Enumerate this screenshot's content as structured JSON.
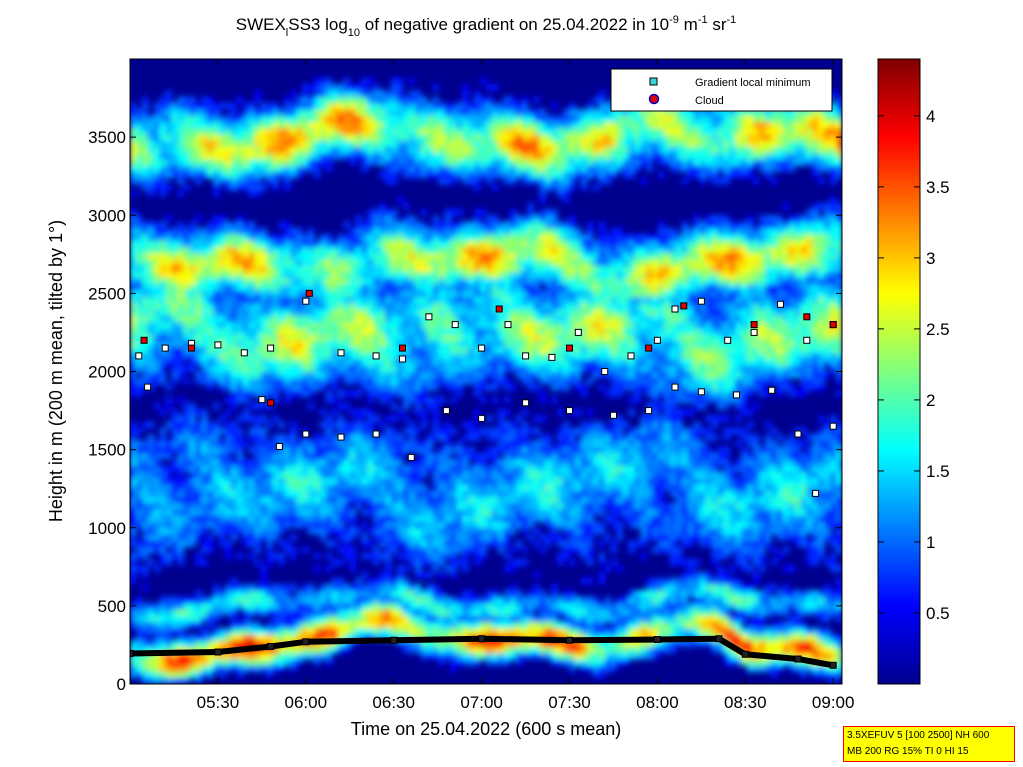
{
  "chart_data": {
    "type": "heatmap",
    "title": {
      "prefix": "SWEX",
      "sub1": "l",
      "mid1": "SS3 log",
      "sub2": "10",
      "mid2": " of negative gradient on 25.04.2022 in 10",
      "sup1": "-9",
      "mid3": " m",
      "sup2": "-1",
      "mid4": " sr",
      "sup3": "-1"
    },
    "xlabel": "Time on 25.04.2022 (600 s mean)",
    "ylabel": "Height in m (200 m mean, tilted by 1°)",
    "x_ticks": [
      "05:30",
      "06:00",
      "06:30",
      "07:00",
      "07:30",
      "08:00",
      "08:30",
      "09:00"
    ],
    "x_tick_hours": [
      5.5,
      6.0,
      6.5,
      7.0,
      7.5,
      8.0,
      8.5,
      9.0
    ],
    "xlim_hours": [
      5.0,
      9.05
    ],
    "y_ticks": [
      "0",
      "500",
      "1000",
      "1500",
      "2000",
      "2500",
      "3000",
      "3500"
    ],
    "y_tick_values": [
      0,
      500,
      1000,
      1500,
      2000,
      2500,
      3000,
      3500
    ],
    "ylim": [
      0,
      4000
    ],
    "colorbar": {
      "ticks": [
        "0.5",
        "1",
        "1.5",
        "2",
        "2.5",
        "3",
        "3.5",
        "4"
      ],
      "tick_values": [
        0.5,
        1,
        1.5,
        2,
        2.5,
        3,
        3.5,
        4
      ],
      "range": [
        0,
        4.4
      ],
      "colormap": "jet"
    },
    "legend": {
      "position": "top-right",
      "entries": [
        {
          "label": "Gradient local minimum",
          "marker": "square",
          "color": "#3ad6d6"
        },
        {
          "label": "Cloud",
          "marker": "circle",
          "color": "#e00000",
          "edge": "#0000cc"
        }
      ]
    },
    "bands": [
      {
        "name": "surface",
        "center": 250,
        "width": 120,
        "value": 3.0
      },
      {
        "name": "low",
        "center": 520,
        "width": 100,
        "value": 1.5
      },
      {
        "name": "mid",
        "center": 1250,
        "width": 450,
        "value": 1.3
      },
      {
        "name": "upper",
        "center": 2250,
        "width": 350,
        "value": 2.0
      },
      {
        "name": "high",
        "center": 2700,
        "width": 220,
        "value": 2.4
      },
      {
        "name": "top",
        "center": 3500,
        "width": 220,
        "value": 2.5
      }
    ],
    "boundary_layer_minima": [
      {
        "t": 5.0,
        "h": 195
      },
      {
        "t": 5.5,
        "h": 205
      },
      {
        "t": 5.8,
        "h": 240
      },
      {
        "t": 6.0,
        "h": 270
      },
      {
        "t": 6.5,
        "h": 280
      },
      {
        "t": 7.0,
        "h": 290
      },
      {
        "t": 7.5,
        "h": 280
      },
      {
        "t": 8.0,
        "h": 285
      },
      {
        "t": 8.35,
        "h": 290
      },
      {
        "t": 8.5,
        "h": 190
      },
      {
        "t": 8.8,
        "h": 160
      },
      {
        "t": 9.0,
        "h": 120
      }
    ],
    "gradient_minima_series": [
      {
        "name": "upper",
        "points": [
          {
            "t": 5.05,
            "h": 2100
          },
          {
            "t": 5.2,
            "h": 2150
          },
          {
            "t": 5.35,
            "h": 2180
          },
          {
            "t": 5.5,
            "h": 2170
          },
          {
            "t": 5.65,
            "h": 2120
          },
          {
            "t": 5.8,
            "h": 2150
          },
          {
            "t": 6.0,
            "h": 2450
          },
          {
            "t": 6.2,
            "h": 2120
          },
          {
            "t": 6.4,
            "h": 2100
          },
          {
            "t": 6.55,
            "h": 2080
          },
          {
            "t": 6.7,
            "h": 2350
          },
          {
            "t": 6.85,
            "h": 2300
          },
          {
            "t": 7.0,
            "h": 2150
          },
          {
            "t": 7.15,
            "h": 2300
          },
          {
            "t": 7.25,
            "h": 2100
          },
          {
            "t": 7.4,
            "h": 2090
          },
          {
            "t": 7.55,
            "h": 2250
          },
          {
            "t": 7.7,
            "h": 2000
          },
          {
            "t": 7.85,
            "h": 2100
          },
          {
            "t": 8.0,
            "h": 2200
          },
          {
            "t": 8.1,
            "h": 2400
          },
          {
            "t": 8.25,
            "h": 2450
          },
          {
            "t": 8.4,
            "h": 2200
          },
          {
            "t": 8.55,
            "h": 2250
          },
          {
            "t": 8.7,
            "h": 2430
          },
          {
            "t": 8.85,
            "h": 2200
          },
          {
            "t": 9.0,
            "h": 2300
          }
        ]
      },
      {
        "name": "lower",
        "points": [
          {
            "t": 5.1,
            "h": 1900
          },
          {
            "t": 5.75,
            "h": 1820
          },
          {
            "t": 5.85,
            "h": 1520
          },
          {
            "t": 6.0,
            "h": 1600
          },
          {
            "t": 6.2,
            "h": 1580
          },
          {
            "t": 6.4,
            "h": 1600
          },
          {
            "t": 6.6,
            "h": 1450
          },
          {
            "t": 6.8,
            "h": 1750
          },
          {
            "t": 7.0,
            "h": 1700
          },
          {
            "t": 7.25,
            "h": 1800
          },
          {
            "t": 7.5,
            "h": 1750
          },
          {
            "t": 7.75,
            "h": 1720
          },
          {
            "t": 7.95,
            "h": 1750
          },
          {
            "t": 8.1,
            "h": 1900
          },
          {
            "t": 8.25,
            "h": 1870
          },
          {
            "t": 8.45,
            "h": 1850
          },
          {
            "t": 8.65,
            "h": 1880
          },
          {
            "t": 8.8,
            "h": 1600
          },
          {
            "t": 8.9,
            "h": 1220
          },
          {
            "t": 9.0,
            "h": 1650
          }
        ]
      }
    ],
    "cloud_points": [
      {
        "t": 5.08,
        "h": 2200
      },
      {
        "t": 5.35,
        "h": 2150
      },
      {
        "t": 5.8,
        "h": 1800
      },
      {
        "t": 6.02,
        "h": 2500
      },
      {
        "t": 6.55,
        "h": 2150
      },
      {
        "t": 7.1,
        "h": 2400
      },
      {
        "t": 7.5,
        "h": 2150
      },
      {
        "t": 7.95,
        "h": 2150
      },
      {
        "t": 8.15,
        "h": 2420
      },
      {
        "t": 8.55,
        "h": 2300
      },
      {
        "t": 8.85,
        "h": 2350
      },
      {
        "t": 9.0,
        "h": 2300
      }
    ]
  },
  "infobox": {
    "line1": "3.5XEFUV 5 [100 2500] NH 600",
    "line2": "MB 200 RG 15% TI 0 HI 15"
  }
}
